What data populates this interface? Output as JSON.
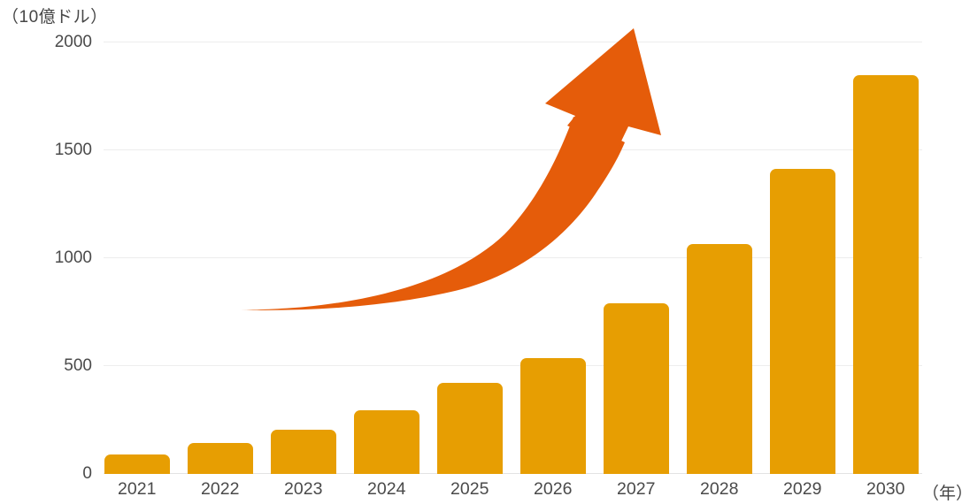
{
  "chart_data": {
    "type": "bar",
    "title": "",
    "unit_label": "（10億ドル）",
    "x_unit_label": "（年）",
    "categories": [
      "2021",
      "2022",
      "2023",
      "2024",
      "2025",
      "2026",
      "2027",
      "2028",
      "2029",
      "2030"
    ],
    "values": [
      90,
      140,
      205,
      295,
      420,
      535,
      790,
      1065,
      1415,
      1850
    ],
    "xlabel": "",
    "ylabel": "",
    "ylim": [
      0,
      2000
    ],
    "yticks": [
      0,
      500,
      1000,
      1500,
      2000
    ],
    "grid": "horizontal",
    "legend": "none",
    "bar_color": "#E79E02",
    "arrow_color": "#E55C0A",
    "text_color": "#4A4A4A",
    "gridline_color": "#EDEDED",
    "annotation": "exponential-growth-arrow"
  }
}
